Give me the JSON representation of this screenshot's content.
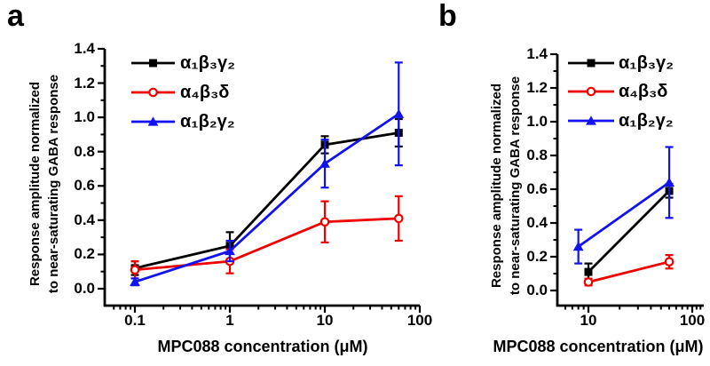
{
  "figure": {
    "panel_labels": [
      "a",
      "b"
    ],
    "x_axis_label": "MPC088 concentration (μM)",
    "y_axis_label_line1": "Response amplitude normalized",
    "y_axis_label_line2": "to near-saturating GABA response",
    "background": "#ffffff",
    "text_color": "#000000"
  },
  "colors": {
    "black_series": "#000000",
    "red_series": "#ee0000",
    "blue_series": "#1212ee"
  },
  "chart_data": [
    {
      "label": "a",
      "type": "line",
      "x_scale": "log",
      "xlabel": "MPC088 concentration (μM)",
      "ylabel": "Response amplitude normalized to near-saturating GABA response",
      "xlim": [
        0.05,
        100
      ],
      "ylim": [
        -0.1,
        1.4
      ],
      "x_ticks": [
        0.1,
        1,
        10,
        100
      ],
      "x_tick_labels": [
        "0.1",
        "1",
        "10",
        "100"
      ],
      "y_ticks": [
        0.0,
        0.2,
        0.4,
        0.6,
        0.8,
        1.0,
        1.2,
        1.4
      ],
      "y_tick_labels": [
        "0.0",
        "0.2",
        "0.4",
        "0.6",
        "0.8",
        "1.0",
        "1.2",
        "1.4"
      ],
      "grid": false,
      "legend_position": "upper-left-inside",
      "series": [
        {
          "name": "α₁β₃γ₂",
          "color": "#000000",
          "marker": "filled-square",
          "x": [
            0.1,
            1,
            10,
            60
          ],
          "y": [
            0.12,
            0.25,
            0.84,
            0.91
          ],
          "yerr": [
            0.04,
            0.08,
            0.05,
            0.08
          ]
        },
        {
          "name": "α₄β₃δ",
          "color": "#ee0000",
          "marker": "open-circle",
          "x": [
            0.1,
            1,
            10,
            60
          ],
          "y": [
            0.11,
            0.16,
            0.39,
            0.41
          ],
          "yerr": [
            0.05,
            0.07,
            0.12,
            0.13
          ]
        },
        {
          "name": "α₁β₂γ₂",
          "color": "#1212ee",
          "marker": "filled-triangle",
          "x": [
            0.1,
            1,
            10,
            60
          ],
          "y": [
            0.04,
            0.22,
            0.73,
            1.02
          ],
          "yerr": [
            0.02,
            0.06,
            0.14,
            0.3
          ]
        }
      ]
    },
    {
      "label": "b",
      "type": "line",
      "x_scale": "log",
      "xlabel": "MPC088 concentration (μM)",
      "ylabel": "Response amplitude normalized to near-saturating GABA response",
      "xlim": [
        5,
        126
      ],
      "ylim": [
        -0.09,
        1.4
      ],
      "x_ticks": [
        10,
        100
      ],
      "x_tick_labels": [
        "10",
        "100"
      ],
      "y_ticks": [
        0.0,
        0.2,
        0.4,
        0.6,
        0.8,
        1.0,
        1.2,
        1.4
      ],
      "y_tick_labels": [
        "0.0",
        "0.2",
        "0.4",
        "0.6",
        "0.8",
        "1.0",
        "1.2",
        "1.4"
      ],
      "grid": false,
      "legend_position": "upper-left-inside",
      "series": [
        {
          "name": "α₁β₃γ₂",
          "color": "#000000",
          "marker": "filled-square",
          "x": [
            10,
            60
          ],
          "y": [
            0.11,
            0.59
          ],
          "yerr": [
            0.05,
            0.04
          ]
        },
        {
          "name": "α₄β₃δ",
          "color": "#ee0000",
          "marker": "open-circle",
          "x": [
            10,
            60
          ],
          "y": [
            0.05,
            0.17
          ],
          "yerr": [
            0.02,
            0.04
          ]
        },
        {
          "name": "α₁β₂γ₂",
          "color": "#1212ee",
          "marker": "filled-triangle",
          "x": [
            8,
            60
          ],
          "y": [
            0.26,
            0.64
          ],
          "yerr": [
            0.1,
            0.21
          ]
        }
      ]
    }
  ]
}
